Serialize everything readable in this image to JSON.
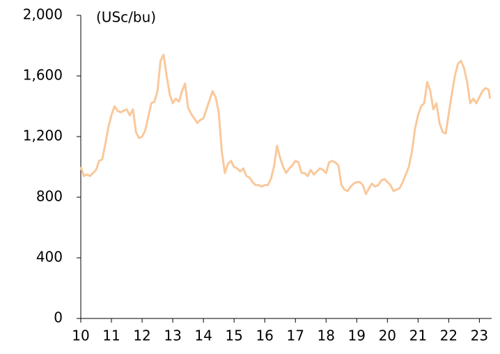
{
  "chart_data": {
    "type": "line",
    "y_label": "(USc/bu)",
    "x": [
      10.0,
      10.1,
      10.2,
      10.3,
      10.4,
      10.5,
      10.6,
      10.7,
      10.8,
      10.9,
      11.0,
      11.1,
      11.2,
      11.3,
      11.4,
      11.5,
      11.6,
      11.7,
      11.8,
      11.9,
      12.0,
      12.1,
      12.2,
      12.3,
      12.4,
      12.5,
      12.6,
      12.7,
      12.8,
      12.9,
      13.0,
      13.1,
      13.2,
      13.3,
      13.4,
      13.5,
      13.6,
      13.7,
      13.8,
      13.9,
      14.0,
      14.1,
      14.2,
      14.3,
      14.4,
      14.5,
      14.6,
      14.7,
      14.8,
      14.9,
      15.0,
      15.1,
      15.2,
      15.3,
      15.4,
      15.5,
      15.6,
      15.7,
      15.8,
      15.9,
      16.0,
      16.1,
      16.2,
      16.3,
      16.4,
      16.5,
      16.6,
      16.7,
      16.8,
      16.9,
      17.0,
      17.1,
      17.2,
      17.3,
      17.4,
      17.5,
      17.6,
      17.7,
      17.8,
      17.9,
      18.0,
      18.1,
      18.2,
      18.3,
      18.4,
      18.5,
      18.6,
      18.7,
      18.8,
      18.9,
      19.0,
      19.1,
      19.2,
      19.3,
      19.4,
      19.5,
      19.6,
      19.7,
      19.8,
      19.9,
      20.0,
      20.1,
      20.2,
      20.3,
      20.4,
      20.5,
      20.6,
      20.7,
      20.8,
      20.9,
      21.0,
      21.1,
      21.2,
      21.3,
      21.4,
      21.5,
      21.6,
      21.7,
      21.8,
      21.9,
      22.0,
      22.1,
      22.2,
      22.3,
      22.4,
      22.5,
      22.6,
      22.7,
      22.8,
      22.9,
      23.0,
      23.1,
      23.2,
      23.3,
      23.35
    ],
    "series": [
      {
        "color": "#f9c89b",
        "values": [
          1000,
          940,
          950,
          940,
          960,
          980,
          1040,
          1050,
          1150,
          1260,
          1340,
          1400,
          1370,
          1360,
          1370,
          1380,
          1340,
          1380,
          1230,
          1190,
          1200,
          1240,
          1330,
          1420,
          1430,
          1500,
          1700,
          1740,
          1600,
          1480,
          1420,
          1450,
          1430,
          1500,
          1550,
          1390,
          1350,
          1320,
          1290,
          1310,
          1320,
          1380,
          1440,
          1500,
          1460,
          1360,
          1100,
          960,
          1020,
          1040,
          1000,
          990,
          970,
          990,
          940,
          930,
          900,
          880,
          880,
          870,
          880,
          880,
          920,
          1000,
          1140,
          1060,
          1000,
          960,
          990,
          1010,
          1040,
          1030,
          960,
          960,
          940,
          980,
          950,
          970,
          990,
          980,
          960,
          1030,
          1040,
          1030,
          1010,
          880,
          850,
          840,
          870,
          890,
          900,
          900,
          880,
          820,
          860,
          890,
          870,
          880,
          910,
          920,
          900,
          880,
          840,
          850,
          860,
          900,
          950,
          1000,
          1100,
          1250,
          1340,
          1400,
          1420,
          1560,
          1500,
          1380,
          1420,
          1290,
          1230,
          1220,
          1350,
          1480,
          1600,
          1680,
          1700,
          1650,
          1560,
          1420,
          1450,
          1420,
          1460,
          1500,
          1520,
          1510,
          1450
        ]
      }
    ],
    "xlim": [
      10,
      23.4
    ],
    "xticks": [
      10,
      11,
      12,
      13,
      14,
      15,
      16,
      17,
      18,
      19,
      20,
      21,
      22,
      23
    ],
    "ylim": [
      0,
      2000
    ],
    "yticks": [
      0,
      400,
      800,
      {
        "value": 1200,
        "label": "1,200"
      },
      {
        "value": 1600,
        "label": "1,600"
      },
      {
        "value": 2000,
        "label": "2,000"
      }
    ]
  }
}
